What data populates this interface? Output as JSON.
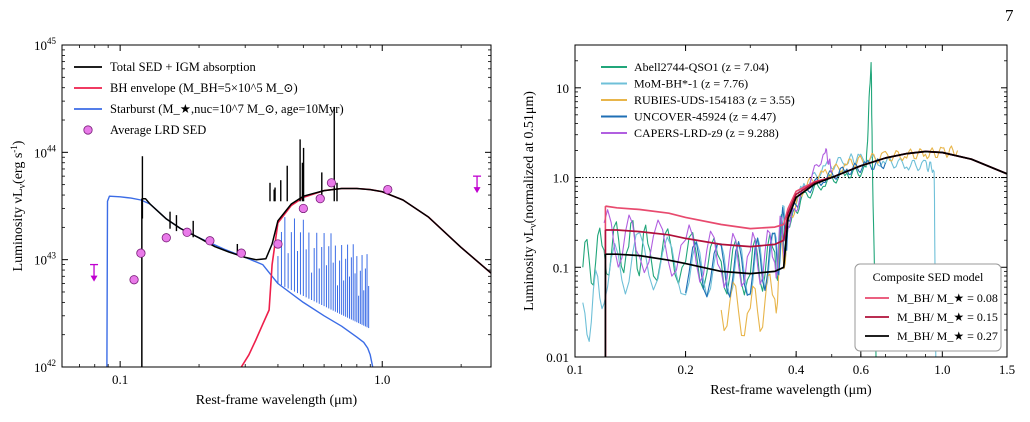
{
  "page_number": "7",
  "chart_data": [
    {
      "type": "line",
      "xlabel": "Rest-frame wavelength (μm)",
      "ylabel_prefix": "Luminosity",
      "ylabel_quantity": "νL",
      "ylabel_sub": "ν",
      "ylabel_unit": "(erg s",
      "ylabel_unit_sup": "-1",
      "ylabel_unit_end": ")",
      "x_scale": "log",
      "y_scale": "log",
      "xlim": [
        0.06,
        2.6
      ],
      "ylim": [
        1e+42,
        1e+45
      ],
      "x_ticks": [
        {
          "v": 0.1,
          "label": "0.1"
        },
        {
          "v": 1.0,
          "label": "1.0"
        }
      ],
      "y_ticks": [
        {
          "v": 1e+42,
          "base": "10",
          "exp": "42"
        },
        {
          "v": 1e+43,
          "base": "10",
          "exp": "43"
        },
        {
          "v": 1e+44,
          "base": "10",
          "exp": "44"
        },
        {
          "v": 1e+45,
          "base": "10",
          "exp": "45"
        }
      ],
      "legend_position": "top-left",
      "legend": [
        {
          "label": "Total SED + IGM absorption",
          "color": "#000000",
          "kind": "line"
        },
        {
          "label": "BH envelope (M_BH=5×10^5 M_⊙)",
          "color": "#ee1f4b",
          "kind": "line"
        },
        {
          "label": "Starburst (M_★,nuc=10^7 M_⊙, age=10Myr)",
          "color": "#3b6ce6",
          "kind": "line"
        },
        {
          "label": "Average LRD SED",
          "color": "#e97ae9",
          "kind": "marker"
        }
      ],
      "series": [
        {
          "name": "Total SED + IGM absorption",
          "color": "#000000",
          "x": [
            0.121,
            0.125,
            0.13,
            0.14,
            0.15,
            0.17,
            0.2,
            0.23,
            0.26,
            0.3,
            0.33,
            0.36,
            0.38,
            0.4,
            0.45,
            0.5,
            0.6,
            0.7,
            0.8,
            0.9,
            1.0,
            1.2,
            1.5,
            2.0,
            2.6
          ],
          "y": [
            3.7e+43,
            3.7e+43,
            3.3e+43,
            2.8e+43,
            2.4e+43,
            1.95e+43,
            1.6e+43,
            1.32e+43,
            1.18e+43,
            1.05e+43,
            1e+43,
            1.02e+43,
            1.4e+43,
            2.3e+43,
            3.3e+43,
            3.9e+43,
            4.4e+43,
            4.6e+43,
            4.6e+43,
            4.5e+43,
            4.3e+43,
            3.6e+43,
            2.5e+43,
            1.3e+43,
            7.5e+42
          ]
        },
        {
          "name": "BH envelope",
          "color": "#ee1f4b",
          "x": [
            0.29,
            0.31,
            0.33,
            0.35,
            0.37,
            0.38,
            0.4,
            0.45,
            0.5,
            0.6,
            0.7,
            0.8,
            0.9,
            1.0,
            1.2,
            1.5,
            2.0,
            2.6
          ],
          "y": [
            1e+42,
            1.3e+42,
            1.8e+42,
            2.5e+42,
            3.4e+42,
            9e+42,
            2.2e+43,
            3.2e+43,
            3.8e+43,
            4.4e+43,
            4.6e+43,
            4.6e+43,
            4.5e+43,
            4.3e+43,
            3.6e+43,
            2.5e+43,
            1.3e+43,
            7.5e+42
          ]
        },
        {
          "name": "Starburst",
          "color": "#3b6ce6",
          "x": [
            0.089,
            0.0895,
            0.091,
            0.1,
            0.11,
            0.12,
            0.13,
            0.15,
            0.17,
            0.2,
            0.25,
            0.3,
            0.35,
            0.38,
            0.4,
            0.5,
            0.6,
            0.7,
            0.8,
            0.85,
            0.88,
            0.9,
            0.92
          ],
          "y": [
            1e+42,
            3.5e+43,
            3.9e+43,
            3.85e+43,
            3.75e+43,
            3.6e+43,
            3.3e+43,
            2.4e+43,
            1.95e+43,
            1.6e+43,
            1.25e+43,
            1.05e+43,
            9e+42,
            7e+42,
            6e+42,
            4e+42,
            3e+42,
            2.4e+42,
            1.9e+42,
            1.7e+42,
            1.5e+42,
            1.3e+42,
            1e+42
          ]
        }
      ],
      "emission_lines": [
        {
          "x": 0.1216,
          "y": 9.2e+43
        },
        {
          "x": 0.155,
          "y": 2.8e+43
        },
        {
          "x": 0.164,
          "y": 2.6e+43
        },
        {
          "x": 0.19,
          "y": 2.3e+43
        },
        {
          "x": 0.28,
          "y": 1.4e+43
        },
        {
          "x": 0.373,
          "y": 5.2e+43
        },
        {
          "x": 0.387,
          "y": 4.5e+43
        },
        {
          "x": 0.39,
          "y": 4.7e+43
        },
        {
          "x": 0.41,
          "y": 5.5e+43
        },
        {
          "x": 0.434,
          "y": 7.5e+43
        },
        {
          "x": 0.486,
          "y": 1.32e+44
        },
        {
          "x": 0.496,
          "y": 8e+43
        },
        {
          "x": 0.501,
          "y": 1.1e+44
        },
        {
          "x": 0.588,
          "y": 6.5e+43
        },
        {
          "x": 0.656,
          "y": 2.65e+44
        },
        {
          "x": 0.672,
          "y": 5.2e+43
        }
      ],
      "markers": {
        "name": "Average LRD SED",
        "color": "#e97ae9",
        "x": [
          0.113,
          0.12,
          0.15,
          0.18,
          0.22,
          0.29,
          0.4,
          0.5,
          0.58,
          0.64,
          1.05
        ],
        "y": [
          6.5e+42,
          1.15e+43,
          1.6e+43,
          1.8e+43,
          1.5e+43,
          1.15e+43,
          1.4e+43,
          3e+43,
          3.7e+43,
          5.2e+43,
          4.5e+43
        ]
      },
      "upper_limits": {
        "color": "#c000d0",
        "x": [
          0.0795,
          2.3
        ],
        "y": [
          9e+42,
          6e+43
        ]
      }
    },
    {
      "type": "line",
      "xlabel": "Rest-frame wavelength (μm)",
      "ylabel_prefix": "Luminosity",
      "ylabel_quantity": "νL",
      "ylabel_sub": "ν",
      "ylabel_rest": "(normalized at 0.51μm)",
      "x_scale": "log",
      "y_scale": "log",
      "xlim": [
        0.1,
        1.5
      ],
      "ylim": [
        0.01,
        30
      ],
      "x_ticks": [
        {
          "v": 0.1,
          "label": "0.1"
        },
        {
          "v": 0.2,
          "label": "0.2"
        },
        {
          "v": 0.4,
          "label": "0.4"
        },
        {
          "v": 0.6,
          "label": "0.6"
        },
        {
          "v": 1.0,
          "label": "1.0"
        },
        {
          "v": 1.5,
          "label": "1.5"
        }
      ],
      "y_ticks": [
        {
          "v": 0.01,
          "label": "0.01"
        },
        {
          "v": 0.1,
          "label": "0.1"
        },
        {
          "v": 1.0,
          "label": "1.0"
        },
        {
          "v": 10,
          "label": "10"
        }
      ],
      "reference_line_y": 1.0,
      "legend_position": "top-left",
      "legend": [
        {
          "label": "Abell2744-QSO1 (z = 7.04)",
          "color": "#21a67a"
        },
        {
          "label": "MoM-BH*-1 (z = 7.76)",
          "color": "#6fc0d8"
        },
        {
          "label": "RUBIES-UDS-154183 (z = 3.55)",
          "color": "#e8b54a"
        },
        {
          "label": "UNCOVER-45924 (z = 4.47)",
          "color": "#1f6fb5"
        },
        {
          "label": "CAPERS-LRD-z9 (z = 9.288)",
          "color": "#b15fe0"
        }
      ],
      "model_legend_title": "Composite SED model",
      "model_legend_position": "bottom-right",
      "models": [
        {
          "label": "M_BH/ M_★ = 0.08",
          "color": "#e84a6e",
          "x": [
            0.121,
            0.13,
            0.15,
            0.18,
            0.2,
            0.25,
            0.3,
            0.35,
            0.37,
            0.38,
            0.4,
            0.45,
            0.5,
            0.6,
            0.7,
            0.8,
            0.9,
            1.0,
            1.2,
            1.5
          ],
          "y": [
            0.48,
            0.46,
            0.44,
            0.4,
            0.36,
            0.3,
            0.27,
            0.28,
            0.3,
            0.45,
            0.7,
            0.9,
            1.0,
            1.35,
            1.65,
            1.85,
            1.95,
            1.9,
            1.6,
            1.1
          ]
        },
        {
          "label": "M_BH/ M_★ = 0.15",
          "color": "#b0103a",
          "x": [
            0.121,
            0.13,
            0.15,
            0.18,
            0.2,
            0.25,
            0.3,
            0.35,
            0.37,
            0.38,
            0.4,
            0.45,
            0.5,
            0.6,
            0.7,
            0.8,
            0.9,
            1.0,
            1.2,
            1.5
          ],
          "y": [
            0.26,
            0.26,
            0.25,
            0.23,
            0.21,
            0.18,
            0.17,
            0.18,
            0.2,
            0.4,
            0.65,
            0.88,
            1.0,
            1.35,
            1.65,
            1.85,
            1.95,
            1.9,
            1.6,
            1.1
          ]
        },
        {
          "label": "M_BH/ M_★ = 0.27",
          "color": "#000000",
          "x": [
            0.121,
            0.13,
            0.15,
            0.18,
            0.2,
            0.25,
            0.3,
            0.35,
            0.37,
            0.38,
            0.4,
            0.45,
            0.5,
            0.6,
            0.7,
            0.8,
            0.9,
            1.0,
            1.2,
            1.5
          ],
          "y": [
            0.14,
            0.14,
            0.135,
            0.12,
            0.11,
            0.09,
            0.085,
            0.09,
            0.1,
            0.35,
            0.6,
            0.85,
            1.0,
            1.35,
            1.65,
            1.85,
            1.95,
            1.9,
            1.6,
            1.1
          ]
        }
      ],
      "observed_spectra": [
        {
          "name": "Abell2744-QSO1",
          "color": "#21a67a",
          "x": [
            0.105,
            0.12,
            0.14,
            0.16,
            0.2,
            0.25,
            0.3,
            0.35,
            0.38,
            0.42,
            0.48,
            0.55,
            0.62,
            0.64,
            0.645,
            0.66
          ],
          "y": [
            0.1,
            0.15,
            0.18,
            0.14,
            0.13,
            0.1,
            0.1,
            0.12,
            0.3,
            0.6,
            0.9,
            1.1,
            1.2,
            22,
            1.5,
            0.01
          ]
        },
        {
          "name": "MoM-BH*-1",
          "color": "#6fc0d8",
          "x": [
            0.105,
            0.12,
            0.15,
            0.2,
            0.25,
            0.3,
            0.35,
            0.38,
            0.42,
            0.48,
            0.55,
            0.6,
            0.7,
            0.8,
            0.9,
            0.95,
            0.96
          ],
          "y": [
            0.02,
            0.08,
            0.12,
            0.1,
            0.09,
            0.1,
            0.12,
            0.4,
            0.8,
            1.3,
            1.6,
            1.6,
            1.5,
            1.4,
            1.35,
            1.3,
            0.01
          ]
        },
        {
          "name": "RUBIES-UDS-154183",
          "color": "#e8b54a",
          "x": [
            0.25,
            0.3,
            0.35,
            0.38,
            0.42,
            0.48,
            0.55,
            0.62,
            0.7,
            0.8,
            0.9,
            1.0,
            1.1
          ],
          "y": [
            0.04,
            0.03,
            0.05,
            0.3,
            0.8,
            1.1,
            1.4,
            1.6,
            1.7,
            1.8,
            1.85,
            1.9,
            2.0
          ]
        },
        {
          "name": "UNCOVER-45924",
          "color": "#1f6fb5",
          "x": [
            0.2,
            0.25,
            0.3,
            0.35,
            0.38,
            0.42,
            0.48,
            0.55,
            0.62,
            0.7
          ],
          "y": [
            0.1,
            0.09,
            0.1,
            0.12,
            0.35,
            0.7,
            1.0,
            1.2,
            1.35,
            1.45
          ]
        },
        {
          "name": "CAPERS-LRD-z9",
          "color": "#b15fe0",
          "x": [
            0.12,
            0.15,
            0.2,
            0.25,
            0.3,
            0.35,
            0.38,
            0.42,
            0.48,
            0.5
          ],
          "y": [
            0.22,
            0.18,
            0.15,
            0.12,
            0.12,
            0.14,
            0.3,
            0.7,
            2.0,
            1.2
          ]
        }
      ]
    }
  ]
}
